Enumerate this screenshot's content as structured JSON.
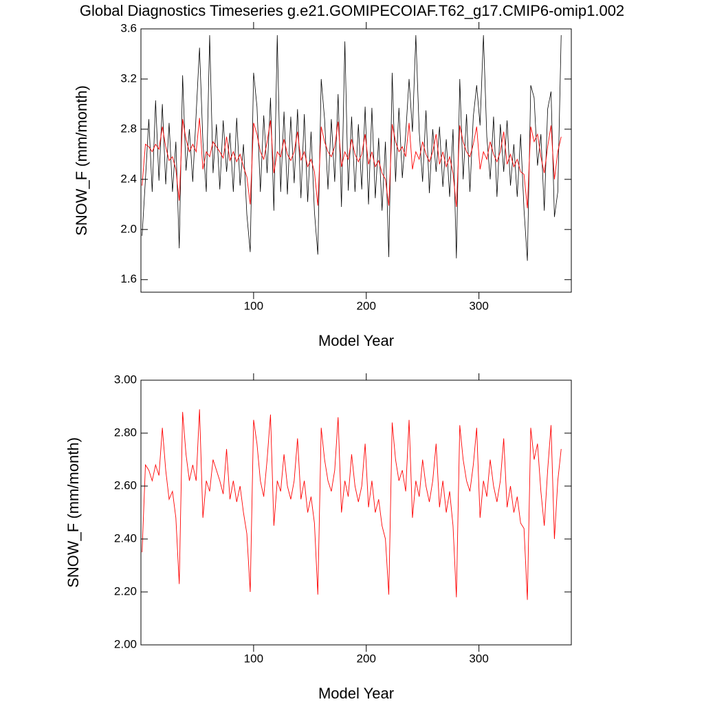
{
  "title": "Global Diagnostics Timeseries g.e21.GOMIPECOIAF.T62_g17.CMIP6-omip1.002",
  "chart_data": [
    {
      "type": "line",
      "xlabel": "Model Year",
      "ylabel": "SNOW_F (mm/month)",
      "xlim": [
        0,
        382
      ],
      "ylim": [
        1.5,
        3.6
      ],
      "xticks": [
        100,
        200,
        300
      ],
      "yticks": [
        {
          "value": 1.6,
          "label": "1.6"
        },
        {
          "value": 2,
          "label": "2.0"
        },
        {
          "value": 2.4,
          "label": "2.4"
        },
        {
          "value": 2.8,
          "label": "2.8"
        },
        {
          "value": 3.2,
          "label": "3.2"
        },
        {
          "value": 3.6,
          "label": "3.6"
        }
      ],
      "x": [
        1,
        4,
        7,
        10,
        13,
        16,
        19,
        22,
        25,
        28,
        31,
        34,
        37,
        40,
        43,
        46,
        49,
        52,
        55,
        58,
        61,
        64,
        67,
        70,
        73,
        76,
        79,
        82,
        85,
        88,
        91,
        94,
        97,
        100,
        103,
        106,
        109,
        112,
        115,
        118,
        121,
        124,
        127,
        130,
        133,
        136,
        139,
        142,
        145,
        148,
        151,
        154,
        157,
        160,
        163,
        166,
        169,
        172,
        175,
        178,
        181,
        184,
        187,
        190,
        193,
        196,
        199,
        202,
        205,
        208,
        211,
        214,
        217,
        220,
        223,
        226,
        229,
        232,
        235,
        238,
        241,
        244,
        247,
        250,
        253,
        256,
        259,
        262,
        265,
        268,
        271,
        274,
        277,
        280,
        283,
        286,
        289,
        292,
        295,
        298,
        301,
        304,
        307,
        310,
        313,
        316,
        319,
        322,
        325,
        328,
        331,
        334,
        337,
        340,
        343,
        346,
        349,
        352,
        355,
        358,
        361,
        364,
        367,
        370,
        373
      ],
      "series": [
        {
          "color": "#000000",
          "values": [
            1.95,
            2.4,
            2.88,
            2.3,
            3.03,
            2.39,
            3.0,
            2.36,
            2.85,
            2.3,
            2.7,
            1.85,
            3.23,
            2.47,
            2.8,
            2.38,
            2.92,
            3.45,
            2.7,
            2.3,
            3.55,
            2.45,
            2.84,
            2.32,
            2.87,
            2.46,
            2.77,
            2.3,
            2.89,
            2.35,
            2.68,
            2.12,
            1.82,
            3.25,
            2.98,
            2.3,
            2.91,
            2.45,
            3.05,
            2.15,
            3.55,
            2.3,
            2.94,
            2.28,
            2.9,
            2.37,
            2.96,
            2.25,
            2.92,
            2.22,
            2.78,
            2.14,
            1.8,
            3.2,
            2.88,
            2.32,
            2.88,
            2.38,
            3.08,
            2.18,
            3.5,
            2.31,
            2.9,
            2.3,
            2.84,
            2.32,
            2.98,
            2.2,
            2.97,
            2.25,
            2.73,
            2.15,
            2.7,
            1.78,
            3.25,
            2.38,
            2.97,
            2.41,
            2.76,
            3.2,
            2.78,
            3.55,
            2.78,
            2.38,
            2.95,
            2.29,
            2.8,
            2.46,
            2.82,
            2.34,
            2.72,
            2.26,
            2.8,
            1.77,
            3.2,
            2.4,
            2.92,
            2.3,
            2.9,
            3.15,
            2.83,
            3.55,
            2.74,
            2.4,
            2.9,
            2.26,
            2.84,
            2.46,
            2.87,
            2.35,
            2.68,
            2.26,
            2.76,
            2.16,
            1.75,
            3.15,
            3.05,
            2.51,
            2.76,
            2.15,
            2.96,
            3.1,
            2.1,
            2.3,
            3.55
          ]
        },
        {
          "color": "#ff0000",
          "values": [
            2.35,
            2.68,
            2.66,
            2.62,
            2.68,
            2.64,
            2.82,
            2.66,
            2.55,
            2.58,
            2.48,
            2.23,
            2.88,
            2.72,
            2.62,
            2.68,
            2.62,
            2.89,
            2.48,
            2.62,
            2.58,
            2.7,
            2.66,
            2.62,
            2.57,
            2.74,
            2.55,
            2.62,
            2.54,
            2.6,
            2.5,
            2.42,
            2.2,
            2.85,
            2.76,
            2.62,
            2.56,
            2.7,
            2.87,
            2.45,
            2.62,
            2.58,
            2.72,
            2.6,
            2.55,
            2.62,
            2.78,
            2.55,
            2.62,
            2.5,
            2.56,
            2.46,
            2.19,
            2.82,
            2.7,
            2.62,
            2.58,
            2.66,
            2.86,
            2.5,
            2.62,
            2.56,
            2.72,
            2.6,
            2.54,
            2.6,
            2.76,
            2.52,
            2.62,
            2.5,
            2.55,
            2.45,
            2.4,
            2.19,
            2.84,
            2.7,
            2.62,
            2.66,
            2.58,
            2.85,
            2.48,
            2.62,
            2.56,
            2.7,
            2.6,
            2.54,
            2.62,
            2.76,
            2.52,
            2.62,
            2.5,
            2.58,
            2.45,
            2.18,
            2.83,
            2.7,
            2.62,
            2.58,
            2.68,
            2.82,
            2.48,
            2.62,
            2.56,
            2.7,
            2.6,
            2.54,
            2.62,
            2.78,
            2.52,
            2.6,
            2.5,
            2.56,
            2.46,
            2.44,
            2.17,
            2.82,
            2.7,
            2.76,
            2.58,
            2.45,
            2.66,
            2.83,
            2.4,
            2.62,
            2.74
          ]
        }
      ]
    },
    {
      "type": "line",
      "xlabel": "Model Year",
      "ylabel": "SNOW_F (mm/month)",
      "xlim": [
        0,
        382
      ],
      "ylim": [
        2.0,
        3.0
      ],
      "xticks": [
        100,
        200,
        300
      ],
      "yticks": [
        {
          "value": 2,
          "label": "2.00"
        },
        {
          "value": 2.2,
          "label": "2.20"
        },
        {
          "value": 2.4,
          "label": "2.40"
        },
        {
          "value": 2.6,
          "label": "2.60"
        },
        {
          "value": 2.8,
          "label": "2.80"
        },
        {
          "value": 3,
          "label": "3.00"
        }
      ],
      "x": [
        1,
        4,
        7,
        10,
        13,
        16,
        19,
        22,
        25,
        28,
        31,
        34,
        37,
        40,
        43,
        46,
        49,
        52,
        55,
        58,
        61,
        64,
        67,
        70,
        73,
        76,
        79,
        82,
        85,
        88,
        91,
        94,
        97,
        100,
        103,
        106,
        109,
        112,
        115,
        118,
        121,
        124,
        127,
        130,
        133,
        136,
        139,
        142,
        145,
        148,
        151,
        154,
        157,
        160,
        163,
        166,
        169,
        172,
        175,
        178,
        181,
        184,
        187,
        190,
        193,
        196,
        199,
        202,
        205,
        208,
        211,
        214,
        217,
        220,
        223,
        226,
        229,
        232,
        235,
        238,
        241,
        244,
        247,
        250,
        253,
        256,
        259,
        262,
        265,
        268,
        271,
        274,
        277,
        280,
        283,
        286,
        289,
        292,
        295,
        298,
        301,
        304,
        307,
        310,
        313,
        316,
        319,
        322,
        325,
        328,
        331,
        334,
        337,
        340,
        343,
        346,
        349,
        352,
        355,
        358,
        361,
        364,
        367,
        370,
        373
      ],
      "series": [
        {
          "color": "#ff0000",
          "values": [
            2.35,
            2.68,
            2.66,
            2.62,
            2.68,
            2.64,
            2.82,
            2.66,
            2.55,
            2.58,
            2.48,
            2.23,
            2.88,
            2.72,
            2.62,
            2.68,
            2.62,
            2.89,
            2.48,
            2.62,
            2.58,
            2.7,
            2.66,
            2.62,
            2.57,
            2.74,
            2.55,
            2.62,
            2.54,
            2.6,
            2.5,
            2.42,
            2.2,
            2.85,
            2.76,
            2.62,
            2.56,
            2.7,
            2.87,
            2.45,
            2.62,
            2.58,
            2.72,
            2.6,
            2.55,
            2.62,
            2.78,
            2.55,
            2.62,
            2.5,
            2.56,
            2.46,
            2.19,
            2.82,
            2.7,
            2.62,
            2.58,
            2.66,
            2.86,
            2.5,
            2.62,
            2.56,
            2.72,
            2.6,
            2.54,
            2.6,
            2.76,
            2.52,
            2.62,
            2.5,
            2.55,
            2.45,
            2.4,
            2.19,
            2.84,
            2.7,
            2.62,
            2.66,
            2.58,
            2.85,
            2.48,
            2.62,
            2.56,
            2.7,
            2.6,
            2.54,
            2.62,
            2.76,
            2.52,
            2.62,
            2.5,
            2.58,
            2.45,
            2.18,
            2.83,
            2.7,
            2.62,
            2.58,
            2.68,
            2.82,
            2.48,
            2.62,
            2.56,
            2.7,
            2.6,
            2.54,
            2.62,
            2.78,
            2.52,
            2.6,
            2.5,
            2.56,
            2.46,
            2.44,
            2.17,
            2.82,
            2.7,
            2.76,
            2.58,
            2.45,
            2.66,
            2.83,
            2.4,
            2.62,
            2.74
          ]
        }
      ]
    }
  ]
}
